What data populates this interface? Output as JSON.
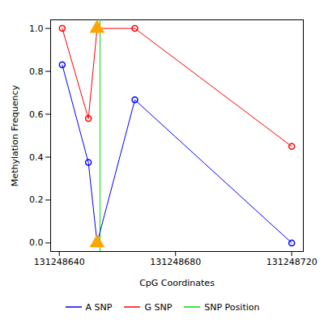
{
  "chart_data": {
    "type": "line",
    "x_label": "CpG Coordinates",
    "y_label": "Methylation Frequency",
    "xlim": [
      131248637,
      131248724
    ],
    "xticks": [
      131248640,
      131248680,
      131248720
    ],
    "ylim": [
      -0.04,
      1.04
    ],
    "yticks": [
      {
        "value": 0,
        "label": "0.0"
      },
      0.2,
      0.4,
      0.6,
      0.8,
      {
        "value": 1,
        "label": "1.0"
      }
    ],
    "legend": "bottom",
    "series": [
      {
        "name": "A SNP",
        "color": "#0000ff",
        "marker": "circle",
        "x": [
          131248641,
          131248650,
          131248653,
          131248666,
          131248720
        ],
        "values": [
          0.83,
          0.375,
          0.0,
          0.667,
          0.0
        ]
      },
      {
        "name": "G SNP",
        "color": "#ff0000",
        "marker": "circle",
        "x": [
          131248641,
          131248650,
          131248653,
          131248666,
          131248720
        ],
        "values": [
          1.0,
          0.58,
          1.0,
          1.0,
          0.45
        ]
      }
    ],
    "snp_position": {
      "name": "SNP Position",
      "color": "#00dd00",
      "x": 131248654
    },
    "snp_markers": {
      "x": [
        131248653,
        131248653
      ],
      "values": [
        0,
        1
      ],
      "color": "orange",
      "marker": "triangle"
    }
  }
}
